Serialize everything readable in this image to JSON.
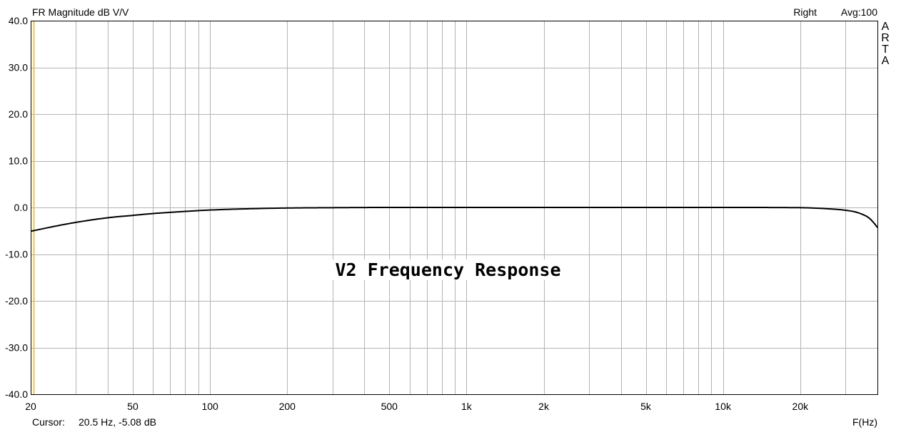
{
  "header": {
    "measurement_title": "FR Magnitude dB V/V",
    "channel": "Right",
    "averaging": "Avg:100"
  },
  "logo": {
    "text": "ARTA"
  },
  "overlay_title": "V2 Frequency Response",
  "footer": {
    "cursor_label": "Cursor:",
    "cursor_value": "20.5 Hz, -5.08 dB",
    "x_unit": "F(Hz)"
  },
  "colors": {
    "grid": "#b4b4b4",
    "curve": "#000000",
    "marker": "#e6c84b"
  },
  "chart_data": {
    "type": "line",
    "title": "FR Magnitude dB V/V",
    "xlabel": "F(Hz)",
    "ylabel": "",
    "xscale": "log",
    "xlim": [
      20,
      40000
    ],
    "ylim": [
      -40,
      40
    ],
    "grid": true,
    "x_ticks": [
      {
        "value": 20,
        "label": "20"
      },
      {
        "value": 50,
        "label": "50"
      },
      {
        "value": 100,
        "label": "100"
      },
      {
        "value": 200,
        "label": "200"
      },
      {
        "value": 500,
        "label": "500"
      },
      {
        "value": 1000,
        "label": "1k"
      },
      {
        "value": 2000,
        "label": "2k"
      },
      {
        "value": 5000,
        "label": "5k"
      },
      {
        "value": 10000,
        "label": "10k"
      },
      {
        "value": 20000,
        "label": "20k"
      }
    ],
    "y_ticks": [
      {
        "value": 40,
        "label": "40.0"
      },
      {
        "value": 30,
        "label": "30.0"
      },
      {
        "value": 20,
        "label": "20.0"
      },
      {
        "value": 10,
        "label": "10.0"
      },
      {
        "value": 0,
        "label": "0.0"
      },
      {
        "value": -10,
        "label": "-10.0"
      },
      {
        "value": -20,
        "label": "-20.0"
      },
      {
        "value": -30,
        "label": "-30.0"
      },
      {
        "value": -40,
        "label": "-40.0"
      }
    ],
    "cursor": {
      "x": 20.5,
      "y": -5.08
    },
    "series": [
      {
        "x": [
          20,
          25,
          30,
          40,
          50,
          60,
          70,
          80,
          100,
          150,
          200,
          300,
          500,
          1000,
          2000,
          5000,
          10000,
          20000,
          25000,
          30000,
          33000,
          35000,
          37000,
          39000,
          40000
        ],
        "y": [
          -5.1,
          -4.0,
          -3.2,
          -2.2,
          -1.7,
          -1.3,
          -1.05,
          -0.85,
          -0.55,
          -0.25,
          -0.12,
          -0.05,
          0,
          0,
          0,
          0,
          0,
          -0.05,
          -0.25,
          -0.6,
          -1.0,
          -1.5,
          -2.2,
          -3.5,
          -4.3
        ]
      }
    ]
  }
}
